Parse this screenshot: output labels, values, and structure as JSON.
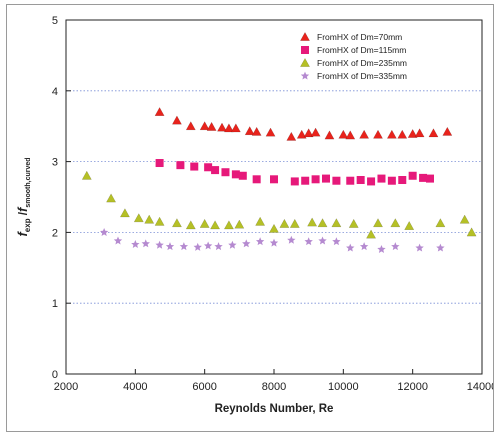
{
  "chart_data": {
    "type": "scatter",
    "xlabel": "Reynolds Number, Re",
    "ylabel_main_1": "f",
    "ylabel_sub_1": "exp",
    "ylabel_mid": " /",
    "ylabel_main_2": "f",
    "ylabel_sub_2": "smooth,curved",
    "xlim": [
      2000,
      14000
    ],
    "ylim": [
      0,
      5
    ],
    "xticks": [
      2000,
      4000,
      6000,
      8000,
      10000,
      12000,
      14000
    ],
    "yticks": [
      0,
      1,
      2,
      3,
      4,
      5
    ],
    "grid": "horizontal dotted",
    "legend_position": "top-right",
    "series": [
      {
        "name": "FromHX of Dm=70mm",
        "color": "#e8231c",
        "marker": "triangle",
        "points": [
          [
            4700,
            3.7
          ],
          [
            5200,
            3.58
          ],
          [
            5600,
            3.5
          ],
          [
            6000,
            3.5
          ],
          [
            6200,
            3.49
          ],
          [
            6500,
            3.48
          ],
          [
            6700,
            3.47
          ],
          [
            6900,
            3.47
          ],
          [
            7300,
            3.43
          ],
          [
            7500,
            3.42
          ],
          [
            7900,
            3.41
          ],
          [
            8500,
            3.35
          ],
          [
            8800,
            3.38
          ],
          [
            9000,
            3.4
          ],
          [
            9200,
            3.41
          ],
          [
            9600,
            3.37
          ],
          [
            10000,
            3.38
          ],
          [
            10200,
            3.37
          ],
          [
            10600,
            3.38
          ],
          [
            11000,
            3.38
          ],
          [
            11400,
            3.38
          ],
          [
            11700,
            3.38
          ],
          [
            12000,
            3.39
          ],
          [
            12200,
            3.4
          ],
          [
            12600,
            3.4
          ],
          [
            13000,
            3.42
          ]
        ]
      },
      {
        "name": "FromHX of Dm=115mm",
        "color": "#e6197a",
        "marker": "square",
        "points": [
          [
            4700,
            2.98
          ],
          [
            5300,
            2.95
          ],
          [
            5700,
            2.93
          ],
          [
            6100,
            2.92
          ],
          [
            6300,
            2.88
          ],
          [
            6600,
            2.85
          ],
          [
            6900,
            2.82
          ],
          [
            7100,
            2.8
          ],
          [
            7500,
            2.75
          ],
          [
            8000,
            2.75
          ],
          [
            8600,
            2.72
          ],
          [
            8900,
            2.73
          ],
          [
            9200,
            2.75
          ],
          [
            9500,
            2.76
          ],
          [
            9800,
            2.73
          ],
          [
            10200,
            2.73
          ],
          [
            10500,
            2.74
          ],
          [
            10800,
            2.72
          ],
          [
            11100,
            2.76
          ],
          [
            11400,
            2.73
          ],
          [
            11700,
            2.74
          ],
          [
            12000,
            2.8
          ],
          [
            12300,
            2.77
          ],
          [
            12500,
            2.76
          ]
        ]
      },
      {
        "name": "FromHX of Dm=235mm",
        "color": "#b5c026",
        "marker": "triangle",
        "points": [
          [
            2600,
            2.8
          ],
          [
            3300,
            2.48
          ],
          [
            3700,
            2.27
          ],
          [
            4100,
            2.2
          ],
          [
            4400,
            2.18
          ],
          [
            4700,
            2.15
          ],
          [
            5200,
            2.13
          ],
          [
            5600,
            2.1
          ],
          [
            6000,
            2.12
          ],
          [
            6300,
            2.1
          ],
          [
            6700,
            2.1
          ],
          [
            7000,
            2.11
          ],
          [
            7600,
            2.15
          ],
          [
            8000,
            2.05
          ],
          [
            8300,
            2.12
          ],
          [
            8600,
            2.12
          ],
          [
            9100,
            2.14
          ],
          [
            9400,
            2.13
          ],
          [
            9800,
            2.13
          ],
          [
            10300,
            2.12
          ],
          [
            10800,
            1.97
          ],
          [
            11000,
            2.13
          ],
          [
            11500,
            2.13
          ],
          [
            11900,
            2.09
          ],
          [
            12800,
            2.13
          ],
          [
            13500,
            2.18
          ],
          [
            13700,
            2.0
          ]
        ]
      },
      {
        "name": "FromHX of Dm=335mm",
        "color": "#b58ad0",
        "marker": "star",
        "points": [
          [
            3100,
            2.0
          ],
          [
            3500,
            1.88
          ],
          [
            4000,
            1.83
          ],
          [
            4300,
            1.84
          ],
          [
            4700,
            1.82
          ],
          [
            5000,
            1.8
          ],
          [
            5400,
            1.8
          ],
          [
            5800,
            1.79
          ],
          [
            6100,
            1.81
          ],
          [
            6400,
            1.8
          ],
          [
            6800,
            1.82
          ],
          [
            7200,
            1.84
          ],
          [
            7600,
            1.87
          ],
          [
            8000,
            1.85
          ],
          [
            8500,
            1.89
          ],
          [
            9000,
            1.87
          ],
          [
            9400,
            1.88
          ],
          [
            9800,
            1.87
          ],
          [
            10200,
            1.78
          ],
          [
            10600,
            1.8
          ],
          [
            11100,
            1.76
          ],
          [
            11500,
            1.8
          ],
          [
            12200,
            1.78
          ],
          [
            12800,
            1.78
          ]
        ]
      }
    ]
  }
}
